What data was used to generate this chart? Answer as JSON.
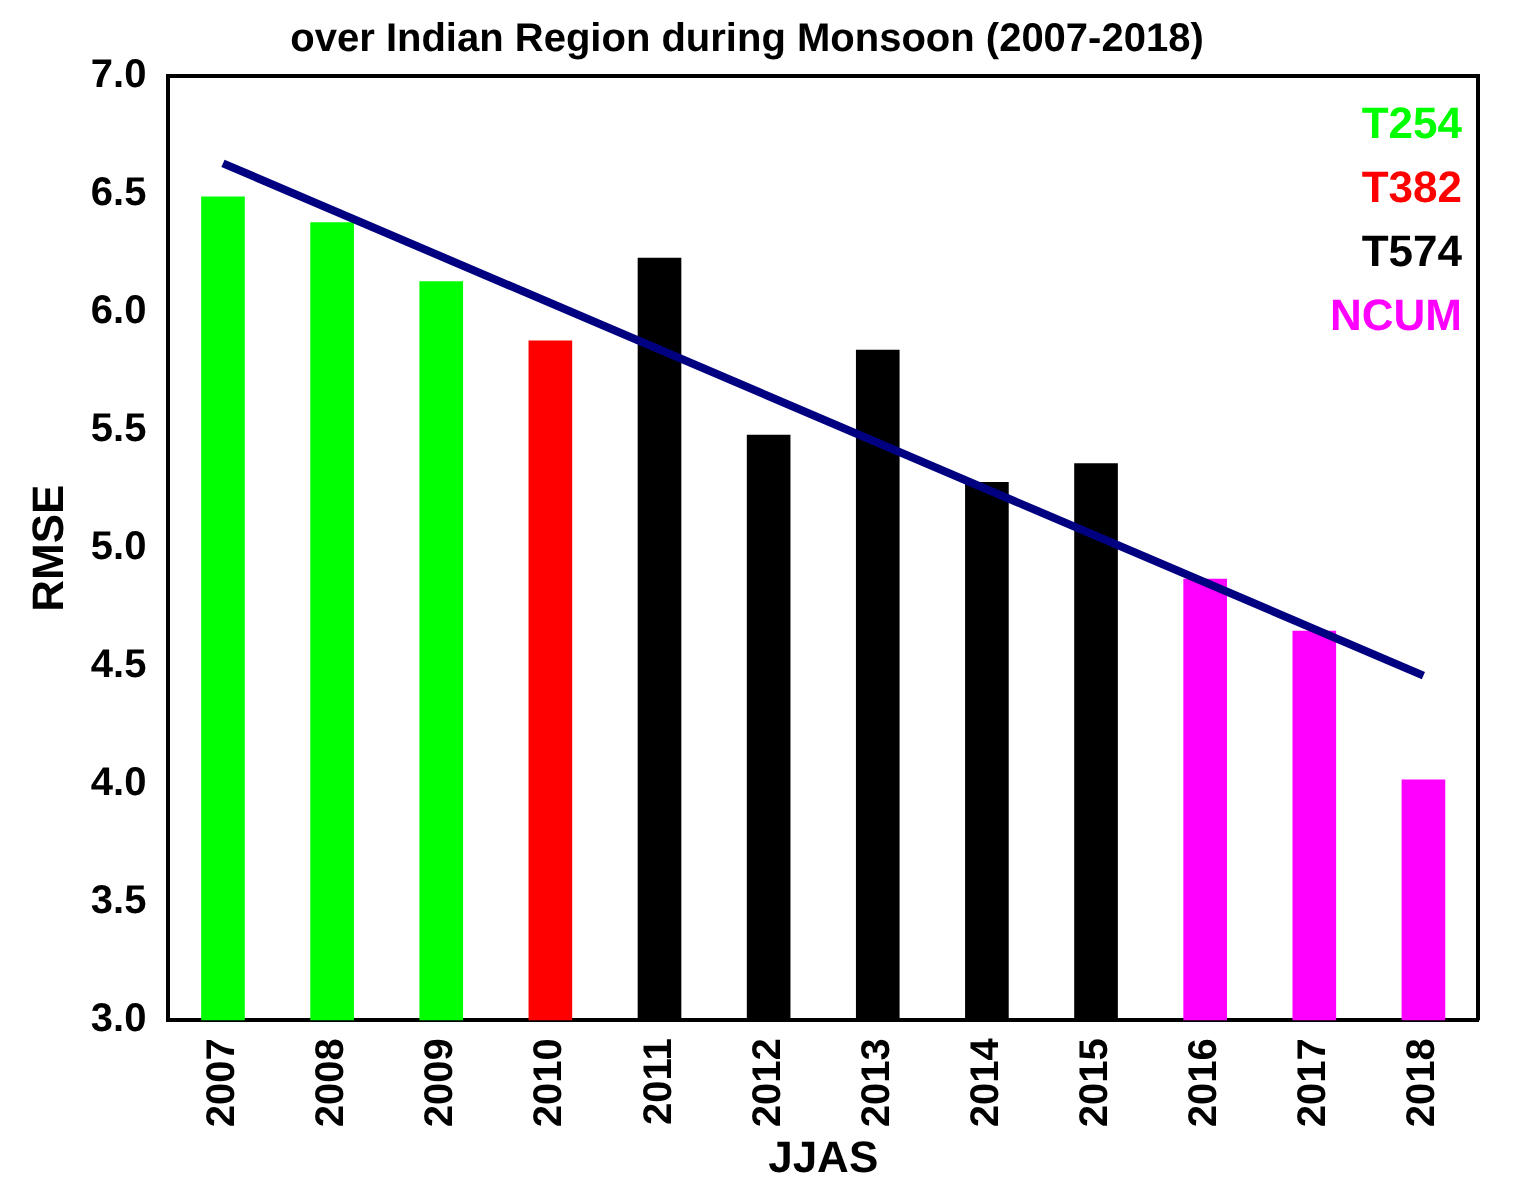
{
  "chart_data": {
    "type": "bar",
    "title": "over Indian Region during Monsoon (2007-2018)",
    "xlabel": "JJAS",
    "ylabel": "RMSE",
    "categories": [
      "2007",
      "2008",
      "2009",
      "2010",
      "2011",
      "2012",
      "2013",
      "2014",
      "2015",
      "2016",
      "2017",
      "2018"
    ],
    "series": [
      {
        "name": "T254",
        "color": "#00ff00",
        "values": [
          6.49,
          6.38,
          6.13,
          null,
          null,
          null,
          null,
          null,
          null,
          null,
          null,
          null
        ]
      },
      {
        "name": "T382",
        "color": "#ff0000",
        "values": [
          null,
          null,
          null,
          5.88,
          null,
          null,
          null,
          null,
          null,
          null,
          null,
          null
        ]
      },
      {
        "name": "T574",
        "color": "#000000",
        "values": [
          null,
          null,
          null,
          null,
          6.23,
          5.48,
          5.84,
          5.28,
          5.36,
          null,
          null,
          null
        ]
      },
      {
        "name": "NCUM",
        "color": "#ff00ff",
        "values": [
          null,
          null,
          null,
          null,
          null,
          null,
          null,
          null,
          null,
          4.87,
          4.65,
          4.02
        ]
      },
      {
        "type": "line",
        "color": "#000080",
        "values": [
          6.63,
          null,
          null,
          null,
          null,
          null,
          null,
          null,
          null,
          null,
          null,
          4.46
        ]
      }
    ],
    "ylim": [
      3.0,
      7.0
    ],
    "yticks": [
      {
        "value": 3,
        "label": "3.0"
      },
      {
        "value": 3.5,
        "label": "3.5"
      },
      {
        "value": 4,
        "label": "4.0"
      },
      {
        "value": 4.5,
        "label": "4.5"
      },
      {
        "value": 5,
        "label": "5.0"
      },
      {
        "value": 5.5,
        "label": "5.5"
      },
      {
        "value": 6,
        "label": "6.0"
      },
      {
        "value": 6.5,
        "label": "6.5"
      },
      {
        "value": 7,
        "label": "7.0"
      }
    ],
    "grid": false,
    "legend": "top right"
  }
}
